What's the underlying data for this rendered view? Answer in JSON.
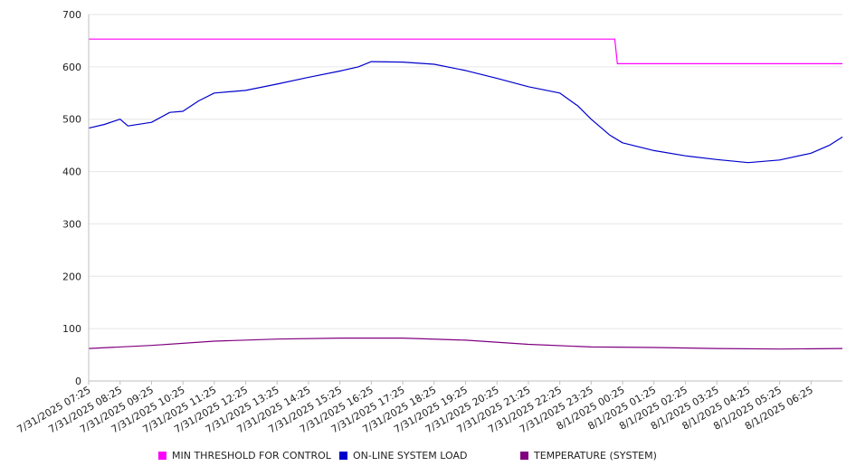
{
  "chart_data": {
    "type": "line",
    "title": "",
    "xlabel": "",
    "ylabel": "",
    "ylim": [
      0,
      700
    ],
    "yticks": [
      0,
      100,
      200,
      300,
      400,
      500,
      600,
      700
    ],
    "grid": true,
    "legend_position": "bottom",
    "categories": [
      "7/31/2025 07:25",
      "7/31/2025 08:25",
      "7/31/2025 09:25",
      "7/31/2025 10:25",
      "7/31/2025 11:25",
      "7/31/2025 12:25",
      "7/31/2025 13:25",
      "7/31/2025 14:25",
      "7/31/2025 15:25",
      "7/31/2025 16:25",
      "7/31/2025 17:25",
      "7/31/2025 18:25",
      "7/31/2025 19:25",
      "7/31/2025 20:25",
      "7/31/2025 21:25",
      "7/31/2025 22:25",
      "7/31/2025 23:25",
      "8/1/2025 00:25",
      "8/1/2025 01:25",
      "8/1/2025 02:25",
      "8/1/2025 03:25",
      "8/1/2025 04:25",
      "8/1/2025 05:25",
      "8/1/2025 06:25"
    ],
    "series": [
      {
        "name": "MIN THRESHOLD FOR CONTROL",
        "color": "#ff00ff",
        "points": [
          [
            "7/31/2025 07:25",
            653
          ],
          [
            "7/31/2025 12:25",
            653
          ],
          [
            "7/31/2025 17:25",
            653
          ],
          [
            "7/31/2025 22:25",
            653
          ],
          [
            "8/1/2025 00:10",
            653
          ],
          [
            "8/1/2025 00:15",
            606
          ],
          [
            "8/1/2025 03:25",
            606
          ],
          [
            "8/1/2025 07:25",
            606
          ]
        ]
      },
      {
        "name": "ON-LINE SYSTEM LOAD",
        "color": "#0000cc",
        "points": [
          [
            "7/31/2025 07:25",
            483
          ],
          [
            "7/31/2025 07:55",
            490
          ],
          [
            "7/31/2025 08:25",
            500
          ],
          [
            "7/31/2025 08:40",
            487
          ],
          [
            "7/31/2025 09:25",
            494
          ],
          [
            "7/31/2025 10:00",
            513
          ],
          [
            "7/31/2025 10:25",
            515
          ],
          [
            "7/31/2025 10:55",
            535
          ],
          [
            "7/31/2025 11:25",
            550
          ],
          [
            "7/31/2025 12:25",
            555
          ],
          [
            "7/31/2025 13:25",
            567
          ],
          [
            "7/31/2025 14:25",
            580
          ],
          [
            "7/31/2025 15:25",
            592
          ],
          [
            "7/31/2025 16:00",
            600
          ],
          [
            "7/31/2025 16:25",
            610
          ],
          [
            "7/31/2025 17:25",
            609
          ],
          [
            "7/31/2025 18:25",
            605
          ],
          [
            "7/31/2025 19:25",
            593
          ],
          [
            "7/31/2025 20:25",
            578
          ],
          [
            "7/31/2025 21:25",
            562
          ],
          [
            "7/31/2025 22:25",
            550
          ],
          [
            "7/31/2025 23:00",
            525
          ],
          [
            "7/31/2025 23:25",
            500
          ],
          [
            "8/1/2025 00:00",
            470
          ],
          [
            "8/1/2025 00:25",
            455
          ],
          [
            "8/1/2025 01:25",
            440
          ],
          [
            "8/1/2025 02:25",
            430
          ],
          [
            "8/1/2025 03:25",
            423
          ],
          [
            "8/1/2025 04:25",
            417
          ],
          [
            "8/1/2025 05:25",
            422
          ],
          [
            "8/1/2025 06:25",
            435
          ],
          [
            "8/1/2025 07:00",
            450
          ],
          [
            "8/1/2025 07:25",
            466
          ]
        ]
      },
      {
        "name": "TEMPERATURE (SYSTEM)",
        "color": "#800080",
        "points": [
          [
            "7/31/2025 07:25",
            62
          ],
          [
            "7/31/2025 09:25",
            68
          ],
          [
            "7/31/2025 11:25",
            76
          ],
          [
            "7/31/2025 13:25",
            80
          ],
          [
            "7/31/2025 15:25",
            82
          ],
          [
            "7/31/2025 17:25",
            82
          ],
          [
            "7/31/2025 19:25",
            78
          ],
          [
            "7/31/2025 21:25",
            70
          ],
          [
            "7/31/2025 23:25",
            65
          ],
          [
            "8/1/2025 01:25",
            64
          ],
          [
            "8/1/2025 03:25",
            62
          ],
          [
            "8/1/2025 05:25",
            61
          ],
          [
            "8/1/2025 07:25",
            62
          ]
        ]
      }
    ]
  }
}
